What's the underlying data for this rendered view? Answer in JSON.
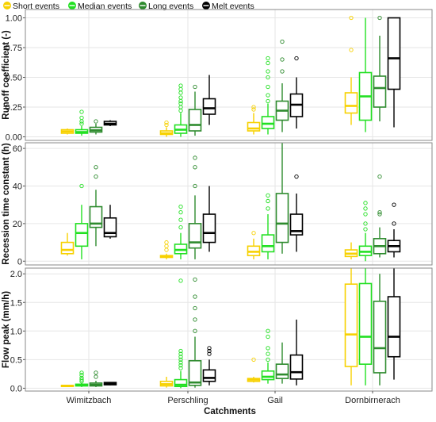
{
  "figure": {
    "legend": {
      "placement": "top-left",
      "entries": [
        "Short events",
        "Median events",
        "Long events",
        "Melt events"
      ]
    },
    "xlabel": "Catchments"
  },
  "colors": {
    "short": "#f7d100",
    "median": "#22e022",
    "long": "#2e8b2e",
    "melt": "#000000",
    "panel_border": "#8a8a8a",
    "grid": "#e6e6e6"
  },
  "chart_data": [
    {
      "type": "box",
      "ylabel": "Runoff coefficient (-)",
      "ylim": [
        -0.03,
        1.07
      ],
      "yticks": [
        0,
        0.25,
        0.5,
        0.75,
        1
      ],
      "ytick_labels": [
        "0.00",
        "0.25",
        "0.50",
        "0.75",
        "1.00"
      ],
      "grid": true,
      "categories": [
        "Wimitzbach",
        "Perschling",
        "Gail",
        "Dornbirnerach"
      ],
      "series": [
        {
          "name": "Short events",
          "boxes": [
            {
              "q1": 0.03,
              "median": 0.045,
              "q3": 0.06,
              "whislo": 0.02,
              "whishi": 0.07,
              "fliers": []
            },
            {
              "q1": 0.02,
              "median": 0.03,
              "q3": 0.05,
              "whislo": 0.0,
              "whishi": 0.08,
              "fliers": [
                0.1,
                0.12
              ]
            },
            {
              "q1": 0.05,
              "median": 0.07,
              "q3": 0.12,
              "whislo": 0.02,
              "whishi": 0.2,
              "fliers": [
                0.23,
                0.25
              ]
            },
            {
              "q1": 0.2,
              "median": 0.26,
              "q3": 0.37,
              "whislo": 0.1,
              "whishi": 0.5,
              "fliers": [
                0.73,
                1.0
              ]
            }
          ]
        },
        {
          "name": "Median events",
          "boxes": [
            {
              "q1": 0.03,
              "median": 0.04,
              "q3": 0.06,
              "whislo": 0.01,
              "whishi": 0.09,
              "fliers": [
                0.11,
                0.13,
                0.16,
                0.21
              ]
            },
            {
              "q1": 0.03,
              "median": 0.06,
              "q3": 0.1,
              "whislo": 0.0,
              "whishi": 0.2,
              "fliers": [
                0.22,
                0.25,
                0.28,
                0.3,
                0.33,
                0.37,
                0.4,
                0.43
              ]
            },
            {
              "q1": 0.07,
              "median": 0.11,
              "q3": 0.17,
              "whislo": 0.02,
              "whishi": 0.28,
              "fliers": [
                0.3,
                0.35,
                0.42,
                0.5,
                0.55,
                0.62,
                0.66
              ]
            },
            {
              "q1": 0.14,
              "median": 0.34,
              "q3": 0.54,
              "whislo": 0.04,
              "whishi": 1.0,
              "fliers": []
            }
          ]
        },
        {
          "name": "Long events",
          "boxes": [
            {
              "q1": 0.04,
              "median": 0.055,
              "q3": 0.08,
              "whislo": 0.02,
              "whishi": 0.11,
              "fliers": [
                0.13
              ]
            },
            {
              "q1": 0.05,
              "median": 0.1,
              "q3": 0.23,
              "whislo": 0.01,
              "whishi": 0.38,
              "fliers": [
                0.42
              ]
            },
            {
              "q1": 0.14,
              "median": 0.22,
              "q3": 0.3,
              "whislo": 0.04,
              "whishi": 0.45,
              "fliers": [
                0.55,
                0.65,
                0.8
              ]
            },
            {
              "q1": 0.25,
              "median": 0.41,
              "q3": 0.51,
              "whislo": 0.13,
              "whishi": 0.85,
              "fliers": [
                1.0
              ]
            }
          ]
        },
        {
          "name": "Melt events",
          "boxes": [
            {
              "q1": 0.1,
              "median": 0.11,
              "q3": 0.13,
              "whislo": 0.09,
              "whishi": 0.14,
              "fliers": []
            },
            {
              "q1": 0.19,
              "median": 0.24,
              "q3": 0.32,
              "whislo": 0.1,
              "whishi": 0.52,
              "fliers": []
            },
            {
              "q1": 0.17,
              "median": 0.27,
              "q3": 0.36,
              "whislo": 0.07,
              "whishi": 0.5,
              "fliers": [
                0.66
              ]
            },
            {
              "q1": 0.4,
              "median": 0.66,
              "q3": 1.0,
              "whislo": 0.08,
              "whishi": 1.0,
              "fliers": []
            }
          ]
        }
      ]
    },
    {
      "type": "box",
      "ylabel": "Recession time constant (h)",
      "ylim": [
        -2,
        63
      ],
      "yticks": [
        0,
        20,
        40,
        60
      ],
      "ytick_labels": [
        "0",
        "20",
        "40",
        "60"
      ],
      "grid": true,
      "categories": [
        "Wimitzbach",
        "Perschling",
        "Gail",
        "Dornbirnerach"
      ],
      "series": [
        {
          "name": "Short events",
          "boxes": [
            {
              "q1": 4,
              "median": 6,
              "q3": 10,
              "whislo": 3,
              "whishi": 15,
              "fliers": []
            },
            {
              "q1": 2,
              "median": 2.5,
              "q3": 3,
              "whislo": 1,
              "whishi": 4,
              "fliers": [
                6,
                8,
                10
              ]
            },
            {
              "q1": 3,
              "median": 5,
              "q3": 8,
              "whislo": 1,
              "whishi": 12,
              "fliers": [
                15
              ]
            },
            {
              "q1": 2.5,
              "median": 4,
              "q3": 6,
              "whislo": 1,
              "whishi": 10,
              "fliers": []
            }
          ]
        },
        {
          "name": "Median events",
          "boxes": [
            {
              "q1": 8,
              "median": 15,
              "q3": 20,
              "whislo": 1,
              "whishi": 30,
              "fliers": [
                40
              ]
            },
            {
              "q1": 4,
              "median": 6,
              "q3": 9,
              "whislo": 1,
              "whishi": 15,
              "fliers": [
                18,
                22,
                26,
                29
              ]
            },
            {
              "q1": 5,
              "median": 8,
              "q3": 14,
              "whislo": 1,
              "whishi": 25,
              "fliers": [
                28,
                32,
                35
              ]
            },
            {
              "q1": 3,
              "median": 5,
              "q3": 8,
              "whislo": 0,
              "whishi": 15,
              "fliers": [
                17,
                20,
                25,
                28,
                31
              ]
            }
          ]
        },
        {
          "name": "Long events",
          "boxes": [
            {
              "q1": 18,
              "median": 20,
              "q3": 29,
              "whislo": 8,
              "whishi": 38,
              "fliers": [
                45,
                50
              ]
            },
            {
              "q1": 7,
              "median": 10,
              "q3": 20,
              "whislo": 1,
              "whishi": 35,
              "fliers": [
                40,
                50,
                55
              ]
            },
            {
              "q1": 10,
              "median": 20,
              "q3": 36,
              "whislo": 4,
              "whishi": 63,
              "fliers": []
            },
            {
              "q1": 4,
              "median": 8,
              "q3": 12,
              "whislo": 2,
              "whishi": 18,
              "fliers": [
                25,
                26,
                45
              ]
            }
          ]
        },
        {
          "name": "Melt events",
          "boxes": [
            {
              "q1": 13,
              "median": 15,
              "q3": 23,
              "whislo": 12,
              "whishi": 30,
              "fliers": []
            },
            {
              "q1": 10,
              "median": 15,
              "q3": 25,
              "whislo": 5,
              "whishi": 40,
              "fliers": []
            },
            {
              "q1": 14,
              "median": 16,
              "q3": 25,
              "whislo": 5,
              "whishi": 36,
              "fliers": [
                45
              ]
            },
            {
              "q1": 5,
              "median": 8,
              "q3": 11,
              "whislo": 2,
              "whishi": 17,
              "fliers": [
                20,
                30
              ]
            }
          ]
        }
      ]
    },
    {
      "type": "box",
      "ylabel": "Flow peak (mm/h)",
      "ylim": [
        -0.05,
        2.1
      ],
      "yticks": [
        0,
        0.5,
        1,
        1.5,
        2
      ],
      "ytick_labels": [
        "0.0",
        "0.5",
        "1.0",
        "1.5",
        "2.0"
      ],
      "grid": true,
      "categories": [
        "Wimitzbach",
        "Perschling",
        "Gail",
        "Dornbirnerach"
      ],
      "series": [
        {
          "name": "Short events",
          "boxes": [
            {
              "q1": 0.03,
              "median": 0.04,
              "q3": 0.05,
              "whislo": 0.02,
              "whishi": 0.06,
              "fliers": []
            },
            {
              "q1": 0.04,
              "median": 0.07,
              "q3": 0.12,
              "whislo": 0.01,
              "whishi": 0.2,
              "fliers": []
            },
            {
              "q1": 0.12,
              "median": 0.15,
              "q3": 0.17,
              "whislo": 0.1,
              "whishi": 0.2,
              "fliers": [
                0.5
              ]
            },
            {
              "q1": 0.38,
              "median": 0.94,
              "q3": 1.82,
              "whislo": 0.05,
              "whishi": 2.1,
              "fliers": []
            }
          ]
        },
        {
          "name": "Median events",
          "boxes": [
            {
              "q1": 0.04,
              "median": 0.05,
              "q3": 0.07,
              "whislo": 0.02,
              "whishi": 0.1,
              "fliers": [
                0.12,
                0.15,
                0.18,
                0.23,
                0.27
              ]
            },
            {
              "q1": 0.03,
              "median": 0.06,
              "q3": 0.15,
              "whislo": 0.0,
              "whishi": 0.3,
              "fliers": [
                0.35,
                0.4,
                0.45,
                0.5,
                0.55,
                0.6,
                0.65,
                1.88
              ]
            },
            {
              "q1": 0.15,
              "median": 0.2,
              "q3": 0.3,
              "whislo": 0.08,
              "whishi": 0.45,
              "fliers": [
                0.5,
                0.6,
                0.7,
                0.9,
                1.0
              ]
            },
            {
              "q1": 0.42,
              "median": 0.9,
              "q3": 1.83,
              "whislo": 0.05,
              "whishi": 2.1,
              "fliers": []
            }
          ]
        },
        {
          "name": "Long events",
          "boxes": [
            {
              "q1": 0.04,
              "median": 0.06,
              "q3": 0.09,
              "whislo": 0.02,
              "whishi": 0.13,
              "fliers": [
                0.2,
                0.27
              ]
            },
            {
              "q1": 0.05,
              "median": 0.1,
              "q3": 0.48,
              "whislo": 0.01,
              "whishi": 0.9,
              "fliers": [
                1.0,
                1.2,
                1.4,
                1.6,
                1.9
              ]
            },
            {
              "q1": 0.17,
              "median": 0.24,
              "q3": 0.42,
              "whislo": 0.08,
              "whishi": 0.8,
              "fliers": []
            },
            {
              "q1": 0.27,
              "median": 0.7,
              "q3": 1.52,
              "whislo": 0.05,
              "whishi": 2.0,
              "fliers": []
            }
          ]
        },
        {
          "name": "Melt events",
          "boxes": [
            {
              "q1": 0.06,
              "median": 0.08,
              "q3": 0.1,
              "whislo": 0.05,
              "whishi": 0.11,
              "fliers": []
            },
            {
              "q1": 0.12,
              "median": 0.18,
              "q3": 0.32,
              "whislo": 0.05,
              "whishi": 0.5,
              "fliers": [
                0.6,
                0.65,
                0.7
              ]
            },
            {
              "q1": 0.16,
              "median": 0.28,
              "q3": 0.58,
              "whislo": 0.05,
              "whishi": 1.2,
              "fliers": []
            },
            {
              "q1": 0.55,
              "median": 0.9,
              "q3": 1.6,
              "whislo": 0.15,
              "whishi": 2.1,
              "fliers": []
            }
          ]
        }
      ]
    }
  ]
}
